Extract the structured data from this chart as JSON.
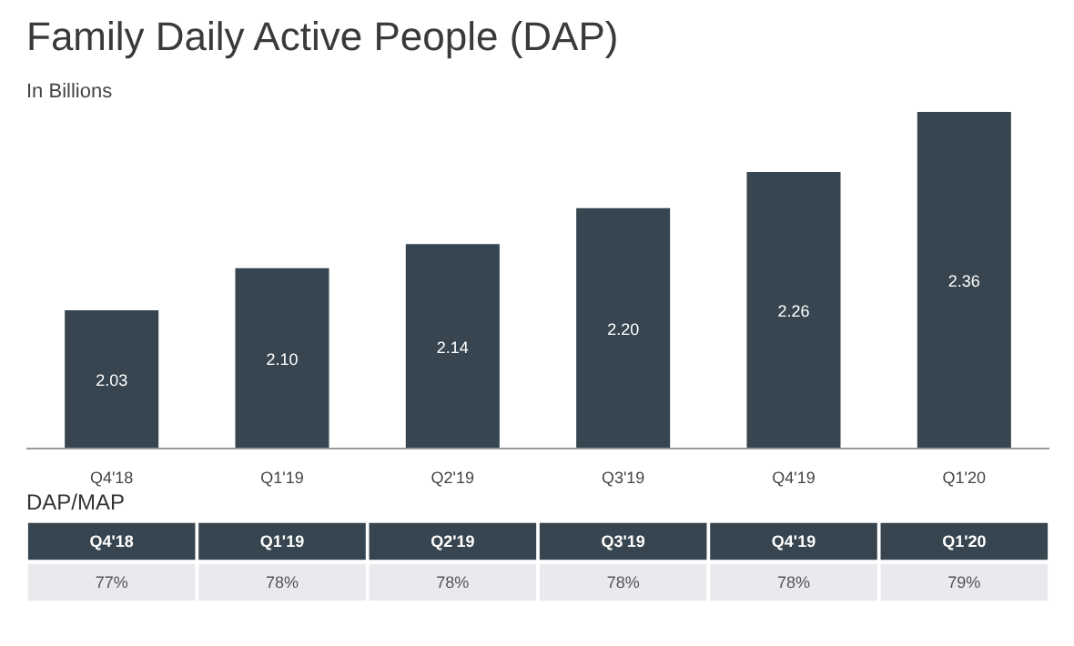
{
  "chart_data": [
    {
      "type": "bar",
      "title": "Family Daily Active People (DAP)",
      "subtitle": "In Billions",
      "categories": [
        "Q4'18",
        "Q1'19",
        "Q2'19",
        "Q3'19",
        "Q4'19",
        "Q1'20"
      ],
      "values": [
        2.03,
        2.1,
        2.14,
        2.2,
        2.26,
        2.36
      ],
      "value_labels": [
        "2.03",
        "2.10",
        "2.14",
        "2.20",
        "2.26",
        "2.36"
      ],
      "color": "#36454f",
      "ylim": [
        1.8,
        2.36
      ]
    },
    {
      "type": "other",
      "title": "DAP/MAP",
      "categories": [
        "Q4'18",
        "Q1'19",
        "Q2'19",
        "Q3'19",
        "Q4'19",
        "Q1'20"
      ],
      "values": [
        77,
        78,
        78,
        78,
        78,
        79
      ],
      "value_labels": [
        "77%",
        "78%",
        "78%",
        "78%",
        "78%",
        "79%"
      ]
    }
  ]
}
